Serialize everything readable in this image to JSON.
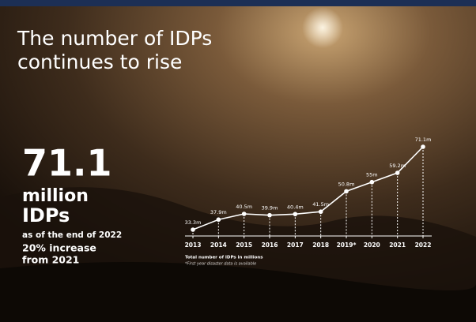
{
  "chart_data": {
    "type": "line",
    "title": [
      "The number of IDPs",
      "continues to rise"
    ],
    "headline": {
      "figure": "71.1",
      "unit": "million",
      "subject": "IDPs",
      "note": "as of the end of 2022",
      "change": [
        "20% increase",
        "from 2021"
      ]
    },
    "categories": [
      "2013",
      "2014",
      "2015",
      "2016",
      "2017",
      "2018",
      "2019*",
      "2020",
      "2021",
      "2022"
    ],
    "values": [
      33.3,
      37.9,
      40.5,
      39.9,
      40.4,
      41.5,
      50.8,
      55,
      59.2,
      71.1
    ],
    "value_labels": [
      "33.3m",
      "37.9m",
      "40.5m",
      "39.9m",
      "40.4m",
      "41.5m",
      "50.8m",
      "55m",
      "59.2m",
      "71.1m"
    ],
    "color": "#ffffff",
    "footnotes": [
      "Total number of IDPs in millions",
      "*First year disaster data is available"
    ]
  }
}
